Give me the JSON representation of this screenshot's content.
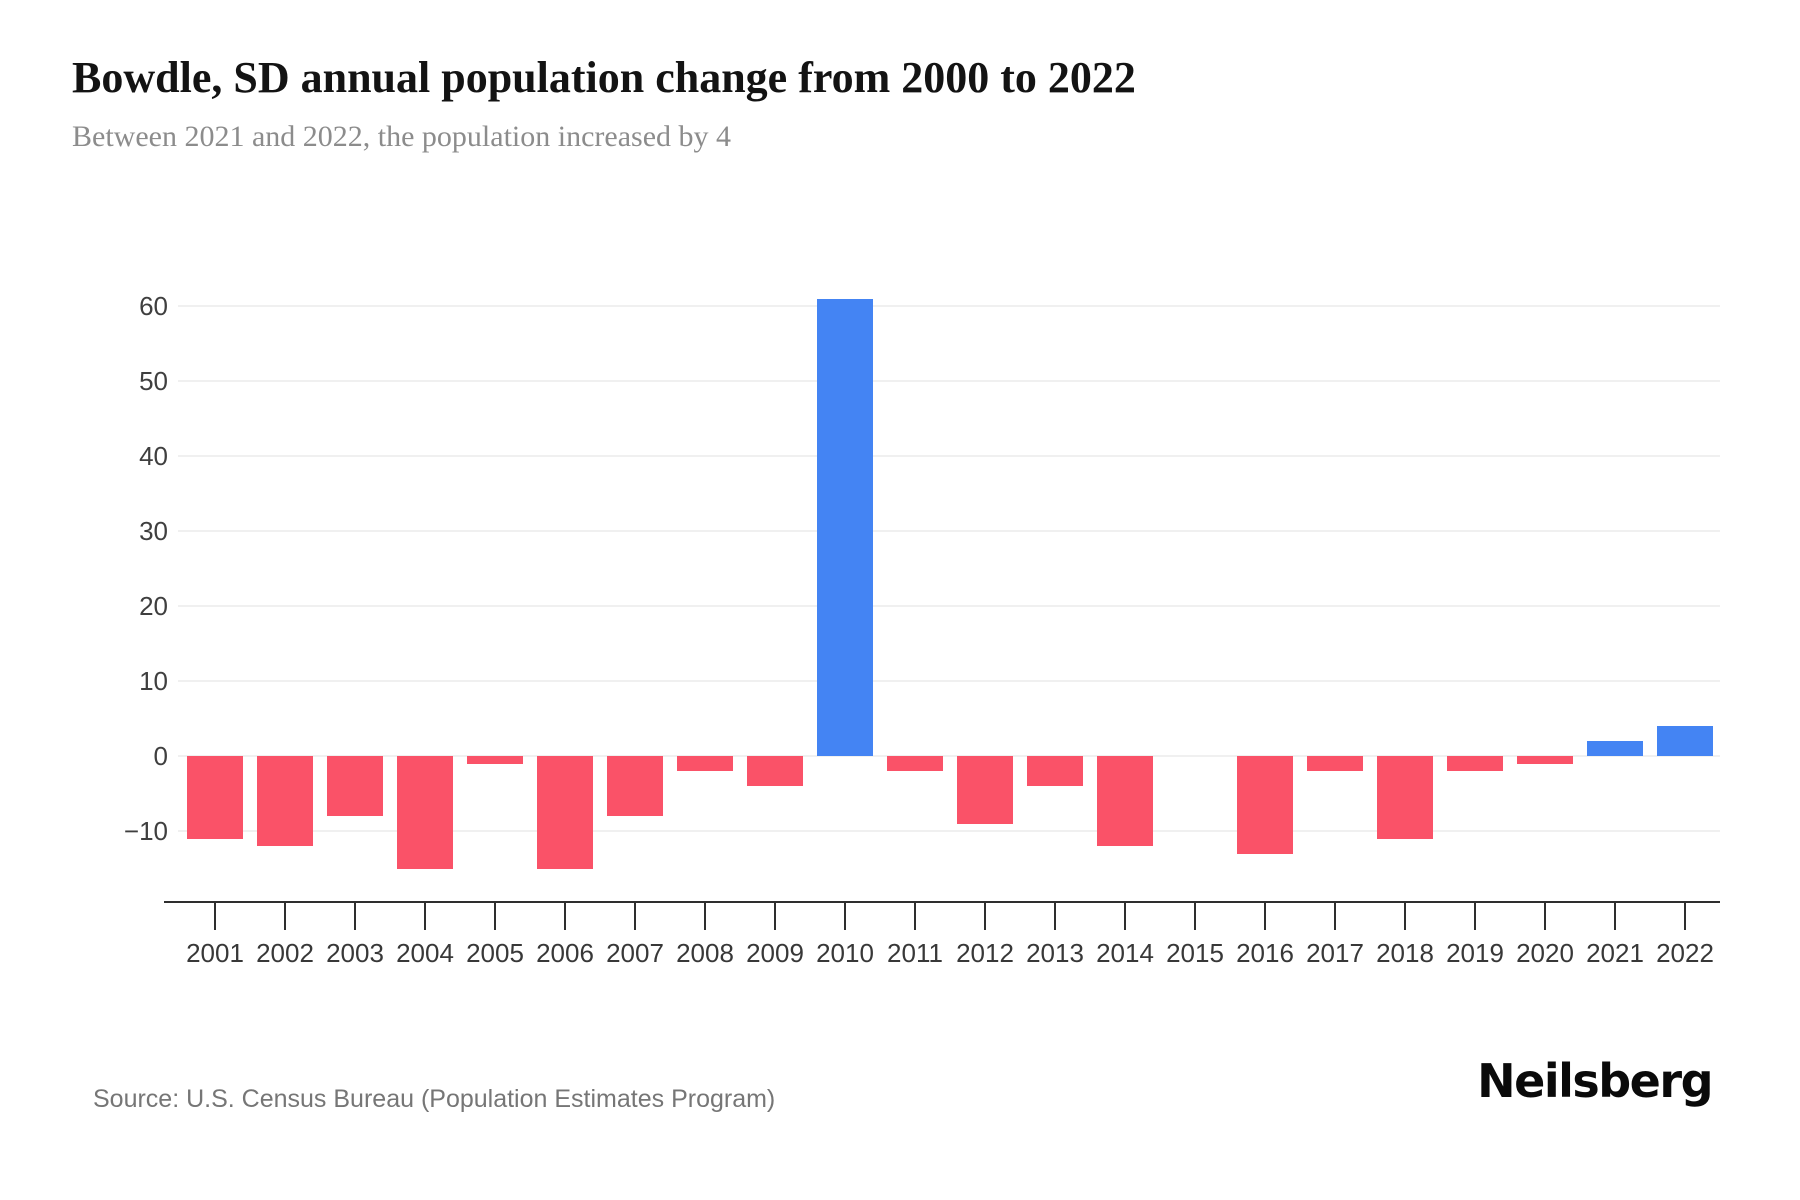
{
  "header": {
    "title": "Bowdle, SD annual population change from 2000 to 2022",
    "subtitle": "Between 2021 and 2022, the population increased by 4"
  },
  "footer": {
    "source": "Source: U.S. Census Bureau (Population Estimates Program)",
    "brand": "Neilsberg"
  },
  "colors": {
    "positive_bar": "#4484f3",
    "negative_bar": "#fa5268",
    "gridline": "#f0f0f0",
    "axis": "#2e2e2e",
    "tick_label": "#383838"
  },
  "chart_data": {
    "type": "bar",
    "title": "Bowdle, SD annual population change from 2000 to 2022",
    "subtitle": "Between 2021 and 2022, the population increased by 4",
    "xlabel": "",
    "ylabel": "",
    "categories": [
      "2001",
      "2002",
      "2003",
      "2004",
      "2005",
      "2006",
      "2007",
      "2008",
      "2009",
      "2010",
      "2011",
      "2012",
      "2013",
      "2014",
      "2015",
      "2016",
      "2017",
      "2018",
      "2019",
      "2020",
      "2021",
      "2022"
    ],
    "values": [
      -11,
      -12,
      -8,
      -15,
      -1,
      -15,
      -8,
      -2,
      -4,
      61,
      -2,
      -9,
      -4,
      -12,
      0,
      -13,
      -2,
      -11,
      -2,
      -1,
      2,
      4
    ],
    "yticks": [
      60,
      50,
      40,
      30,
      20,
      10,
      0,
      -10
    ],
    "ylim": [
      -19.5,
      66
    ],
    "grid": true,
    "legend": false,
    "positive_color": "#4484f3",
    "negative_color": "#fa5268"
  }
}
